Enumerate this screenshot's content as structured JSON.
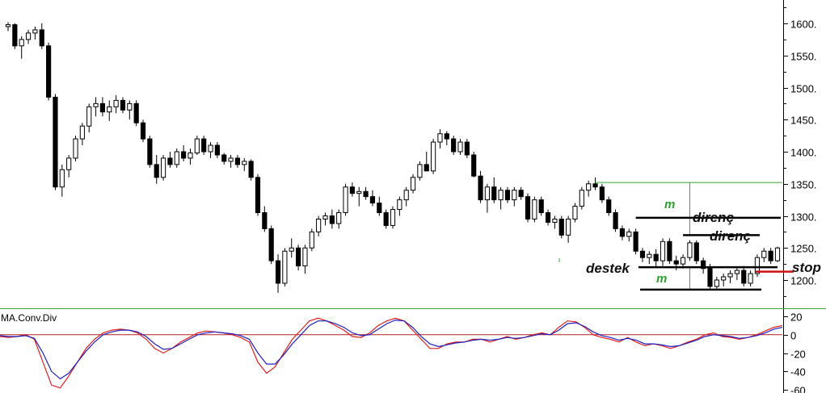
{
  "chart_data": [
    {
      "type": "candlestick",
      "title": "",
      "y_axis": {
        "range": [
          1170,
          1650
        ],
        "ticks": [
          1600,
          1550,
          1500,
          1450,
          1400,
          1350,
          1300,
          1250,
          1200
        ],
        "side": "right"
      },
      "grid": false,
      "series": [
        {
          "points": [
            [
              1595,
              1602,
              1588,
              1598
            ],
            [
              1598,
              1600,
              1560,
              1565
            ],
            [
              1565,
              1580,
              1545,
              1575
            ],
            [
              1575,
              1590,
              1568,
              1585
            ],
            [
              1585,
              1595,
              1575,
              1590
            ],
            [
              1590,
              1600,
              1560,
              1565
            ],
            [
              1565,
              1570,
              1480,
              1485
            ],
            [
              1485,
              1490,
              1340,
              1345
            ],
            [
              1345,
              1380,
              1330,
              1372
            ],
            [
              1372,
              1395,
              1360,
              1390
            ],
            [
              1390,
              1425,
              1385,
              1420
            ],
            [
              1420,
              1445,
              1410,
              1440
            ],
            [
              1440,
              1475,
              1430,
              1470
            ],
            [
              1470,
              1485,
              1455,
              1475
            ],
            [
              1475,
              1485,
              1455,
              1462
            ],
            [
              1462,
              1480,
              1448,
              1470
            ],
            [
              1470,
              1488,
              1460,
              1480
            ],
            [
              1480,
              1485,
              1460,
              1465
            ],
            [
              1465,
              1480,
              1450,
              1475
            ],
            [
              1475,
              1480,
              1440,
              1445
            ],
            [
              1445,
              1450,
              1415,
              1420
            ],
            [
              1420,
              1425,
              1375,
              1380
            ],
            [
              1380,
              1395,
              1350,
              1360
            ],
            [
              1360,
              1395,
              1355,
              1390
            ],
            [
              1390,
              1400,
              1375,
              1380
            ],
            [
              1380,
              1405,
              1375,
              1400
            ],
            [
              1400,
              1410,
              1385,
              1390
            ],
            [
              1390,
              1405,
              1380,
              1398
            ],
            [
              1398,
              1425,
              1395,
              1420
            ],
            [
              1420,
              1425,
              1395,
              1400
            ],
            [
              1400,
              1415,
              1390,
              1410
            ],
            [
              1410,
              1415,
              1390,
              1395
            ],
            [
              1395,
              1398,
              1380,
              1385
            ],
            [
              1385,
              1395,
              1375,
              1390
            ],
            [
              1390,
              1395,
              1375,
              1380
            ],
            [
              1380,
              1390,
              1370,
              1385
            ],
            [
              1385,
              1388,
              1355,
              1360
            ],
            [
              1360,
              1365,
              1300,
              1305
            ],
            [
              1305,
              1315,
              1275,
              1280
            ],
            [
              1280,
              1285,
              1225,
              1230
            ],
            [
              1230,
              1240,
              1180,
              1195
            ],
            [
              1195,
              1250,
              1190,
              1245
            ],
            [
              1245,
              1265,
              1235,
              1250
            ],
            [
              1250,
              1255,
              1215,
              1222
            ],
            [
              1222,
              1255,
              1210,
              1250
            ],
            [
              1250,
              1280,
              1245,
              1275
            ],
            [
              1275,
              1300,
              1268,
              1295
            ],
            [
              1295,
              1305,
              1285,
              1300
            ],
            [
              1300,
              1310,
              1280,
              1288
            ],
            [
              1288,
              1310,
              1280,
              1305
            ],
            [
              1305,
              1350,
              1300,
              1345
            ],
            [
              1345,
              1352,
              1330,
              1335
            ],
            [
              1335,
              1345,
              1315,
              1338
            ],
            [
              1338,
              1345,
              1325,
              1330
            ],
            [
              1330,
              1340,
              1315,
              1320
            ],
            [
              1320,
              1330,
              1300,
              1305
            ],
            [
              1305,
              1310,
              1280,
              1285
            ],
            [
              1285,
              1315,
              1280,
              1310
            ],
            [
              1310,
              1330,
              1300,
              1325
            ],
            [
              1325,
              1345,
              1315,
              1340
            ],
            [
              1340,
              1365,
              1335,
              1360
            ],
            [
              1360,
              1385,
              1355,
              1380
            ],
            [
              1380,
              1400,
              1370,
              1370
            ],
            [
              1370,
              1420,
              1365,
              1415
            ],
            [
              1415,
              1435,
              1405,
              1428
            ],
            [
              1428,
              1432,
              1410,
              1420
            ],
            [
              1420,
              1425,
              1395,
              1400
            ],
            [
              1400,
              1420,
              1395,
              1415
            ],
            [
              1415,
              1420,
              1390,
              1395
            ],
            [
              1395,
              1400,
              1360,
              1362
            ],
            [
              1362,
              1370,
              1320,
              1325
            ],
            [
              1325,
              1350,
              1305,
              1345
            ],
            [
              1345,
              1360,
              1320,
              1325
            ],
            [
              1325,
              1345,
              1310,
              1340
            ],
            [
              1340,
              1345,
              1320,
              1325
            ],
            [
              1325,
              1345,
              1315,
              1340
            ],
            [
              1340,
              1345,
              1325,
              1330
            ],
            [
              1330,
              1335,
              1290,
              1295
            ],
            [
              1295,
              1330,
              1290,
              1325
            ],
            [
              1325,
              1330,
              1300,
              1305
            ],
            [
              1305,
              1310,
              1285,
              1290
            ],
            [
              1290,
              1300,
              1280,
              1295
            ],
            [
              1295,
              1300,
              1265,
              1270
            ],
            [
              1270,
              1300,
              1258,
              1295
            ],
            [
              1295,
              1320,
              1290,
              1315
            ],
            [
              1315,
              1345,
              1310,
              1340
            ],
            [
              1340,
              1355,
              1330,
              1350
            ],
            [
              1350,
              1360,
              1340,
              1345
            ],
            [
              1345,
              1350,
              1320,
              1325
            ],
            [
              1325,
              1330,
              1300,
              1305
            ],
            [
              1305,
              1310,
              1275,
              1280
            ],
            [
              1280,
              1285,
              1262,
              1268
            ],
            [
              1268,
              1280,
              1260,
              1275
            ],
            [
              1275,
              1280,
              1240,
              1245
            ],
            [
              1245,
              1250,
              1228,
              1235
            ],
            [
              1235,
              1245,
              1225,
              1240
            ],
            [
              1240,
              1248,
              1220,
              1230
            ],
            [
              1230,
              1265,
              1222,
              1260
            ],
            [
              1260,
              1265,
              1225,
              1230
            ],
            [
              1230,
              1238,
              1215,
              1225
            ],
            [
              1225,
              1240,
              1218,
              1235
            ],
            [
              1235,
              1262,
              1230,
              1258
            ],
            [
              1258,
              1262,
              1225,
              1230
            ],
            [
              1230,
              1235,
              1210,
              1218
            ],
            [
              1218,
              1225,
              1185,
              1190
            ],
            [
              1190,
              1205,
              1185,
              1200
            ],
            [
              1200,
              1210,
              1190,
              1205
            ],
            [
              1205,
              1215,
              1195,
              1210
            ],
            [
              1210,
              1220,
              1200,
              1215
            ],
            [
              1215,
              1222,
              1190,
              1195
            ],
            [
              1195,
              1215,
              1190,
              1210
            ],
            [
              1210,
              1240,
              1205,
              1235
            ],
            [
              1235,
              1250,
              1228,
              1245
            ],
            [
              1245,
              1250,
              1225,
              1230
            ],
            [
              1230,
              1252,
              1228,
              1250
            ]
          ]
        }
      ],
      "annotations": [
        {
          "text": "direnç",
          "y": 1297
        },
        {
          "text": "direnç",
          "y": 1270
        },
        {
          "text": "destek",
          "y": 1220
        },
        {
          "text": "stop",
          "y": 1213
        },
        {
          "text": "m",
          "y": 1295
        },
        {
          "text": "m",
          "y": 1200
        }
      ],
      "level_lines": {
        "direnc_1": 1297,
        "direnc_2": 1270,
        "destek": 1220,
        "stop": 1213,
        "range_top": 1352,
        "range_bottom": 1185
      },
      "colors": {
        "range_lines": "#35a635",
        "stop_line": "#d01010",
        "levels": "#000000"
      }
    },
    {
      "type": "line",
      "title": "MA.Conv.Div",
      "y_axis": {
        "range": [
          -60,
          25
        ],
        "ticks": [
          20,
          0,
          -20,
          -40,
          -60
        ],
        "side": "right"
      },
      "grid": false,
      "zero_line_color": "#b02020",
      "series": [
        {
          "name": "",
          "color": "#e02020",
          "values": [
            -2,
            -3,
            -2,
            0,
            -5,
            -30,
            -55,
            -58,
            -45,
            -30,
            -15,
            -5,
            2,
            5,
            6,
            5,
            2,
            -5,
            -15,
            -20,
            -15,
            -8,
            -3,
            2,
            4,
            3,
            2,
            0,
            -3,
            -8,
            -30,
            -42,
            -35,
            -20,
            -5,
            5,
            15,
            18,
            15,
            10,
            5,
            -2,
            -3,
            2,
            10,
            15,
            18,
            15,
            5,
            -5,
            -15,
            -15,
            -10,
            -8,
            -8,
            -5,
            -5,
            -8,
            -5,
            -2,
            -5,
            -3,
            0,
            2,
            0,
            8,
            15,
            14,
            8,
            0,
            -3,
            -5,
            -8,
            -3,
            -8,
            -12,
            -10,
            -12,
            -15,
            -12,
            -8,
            -5,
            0,
            2,
            -2,
            -3,
            -5,
            -3,
            0,
            4,
            8,
            10
          ]
        },
        {
          "name": "",
          "color": "#2020c0",
          "values": [
            -1,
            -2,
            -2,
            -1,
            -4,
            -20,
            -40,
            -48,
            -42,
            -30,
            -18,
            -8,
            0,
            3,
            5,
            5,
            3,
            -2,
            -10,
            -16,
            -15,
            -10,
            -5,
            0,
            2,
            3,
            2,
            1,
            -1,
            -5,
            -20,
            -32,
            -32,
            -22,
            -10,
            0,
            10,
            15,
            15,
            12,
            8,
            2,
            -1,
            0,
            6,
            12,
            16,
            15,
            8,
            -2,
            -10,
            -13,
            -11,
            -9,
            -8,
            -6,
            -5,
            -6,
            -5,
            -3,
            -4,
            -3,
            -1,
            1,
            0,
            5,
            12,
            13,
            9,
            3,
            -1,
            -3,
            -6,
            -4,
            -6,
            -10,
            -10,
            -11,
            -13,
            -12,
            -9,
            -6,
            -2,
            0,
            -1,
            -2,
            -4,
            -3,
            -1,
            2,
            6,
            8
          ]
        }
      ]
    }
  ]
}
